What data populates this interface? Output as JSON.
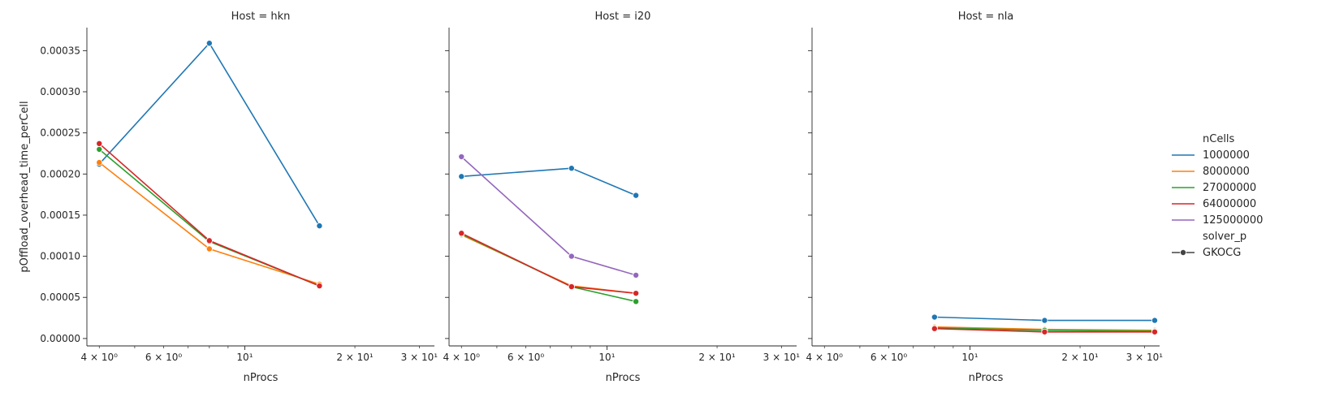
{
  "chart_data": {
    "type": "line",
    "xlabel": "nProcs",
    "ylabel": "pOffload_overhead_time_perCell",
    "xscale": "log",
    "xlim": [
      3.7,
      33
    ],
    "ylim": [
      -9e-06,
      0.000378
    ],
    "x_tick_labels": [
      "4 × 10⁰",
      "6 × 10⁰",
      "10¹",
      "2 × 10¹",
      "3 × 10¹"
    ],
    "x_tick_values": [
      4,
      6,
      10,
      20,
      30
    ],
    "y_tick_labels": [
      "0.00000",
      "0.00005",
      "0.00010",
      "0.00015",
      "0.00020",
      "0.00025",
      "0.00030",
      "0.00035"
    ],
    "y_tick_values": [
      0,
      5e-05,
      0.0001,
      0.00015,
      0.0002,
      0.00025,
      0.0003,
      0.00035
    ],
    "grid": false,
    "legend_position": "right",
    "legend": {
      "hue_title": "nCells",
      "style_title": "solver_p",
      "style_entries": [
        "GKOCG"
      ]
    },
    "series_colors": {
      "1000000": "#1f77b4",
      "8000000": "#ff7f0e",
      "27000000": "#2ca02c",
      "64000000": "#d62728",
      "125000000": "#9467bd"
    },
    "panels": [
      {
        "title": "Host = hkn",
        "series": [
          {
            "name": "1000000",
            "x": [
              4,
              8,
              16
            ],
            "y": [
              0.000212,
              0.000359,
              0.000137
            ]
          },
          {
            "name": "8000000",
            "x": [
              4,
              8,
              16
            ],
            "y": [
              0.000214,
              0.000109,
              6.6e-05
            ]
          },
          {
            "name": "27000000",
            "x": [
              4,
              8,
              16
            ],
            "y": [
              0.00023,
              0.000118,
              6.4e-05
            ]
          },
          {
            "name": "64000000",
            "x": [
              4,
              8,
              16
            ],
            "y": [
              0.000237,
              0.000119,
              6.4e-05
            ]
          }
        ]
      },
      {
        "title": "Host = i20",
        "series": [
          {
            "name": "1000000",
            "x": [
              4,
              8,
              12
            ],
            "y": [
              0.000197,
              0.000207,
              0.000174
            ]
          },
          {
            "name": "8000000",
            "x": [
              4,
              8,
              12
            ],
            "y": [
              0.000126,
              6.4e-05,
              5.5e-05
            ]
          },
          {
            "name": "27000000",
            "x": [
              4,
              8,
              12
            ],
            "y": [
              0.000127,
              6.3e-05,
              4.5e-05
            ]
          },
          {
            "name": "64000000",
            "x": [
              4,
              8,
              12
            ],
            "y": [
              0.000128,
              6.3e-05,
              5.5e-05
            ]
          },
          {
            "name": "125000000",
            "x": [
              4,
              8,
              12
            ],
            "y": [
              0.000221,
              0.0001,
              7.7e-05
            ]
          }
        ]
      },
      {
        "title": "Host = nla",
        "series": [
          {
            "name": "1000000",
            "x": [
              8,
              16,
              32
            ],
            "y": [
              2.6e-05,
              2.2e-05,
              2.2e-05
            ]
          },
          {
            "name": "8000000",
            "x": [
              8,
              16,
              32
            ],
            "y": [
              1.4e-05,
              1.1e-05,
              1e-05
            ]
          },
          {
            "name": "27000000",
            "x": [
              8,
              16,
              32
            ],
            "y": [
              1.3e-05,
              1e-05,
              9e-06
            ]
          },
          {
            "name": "64000000",
            "x": [
              8,
              16,
              32
            ],
            "y": [
              1.2e-05,
              8e-06,
              8e-06
            ]
          }
        ]
      }
    ]
  }
}
